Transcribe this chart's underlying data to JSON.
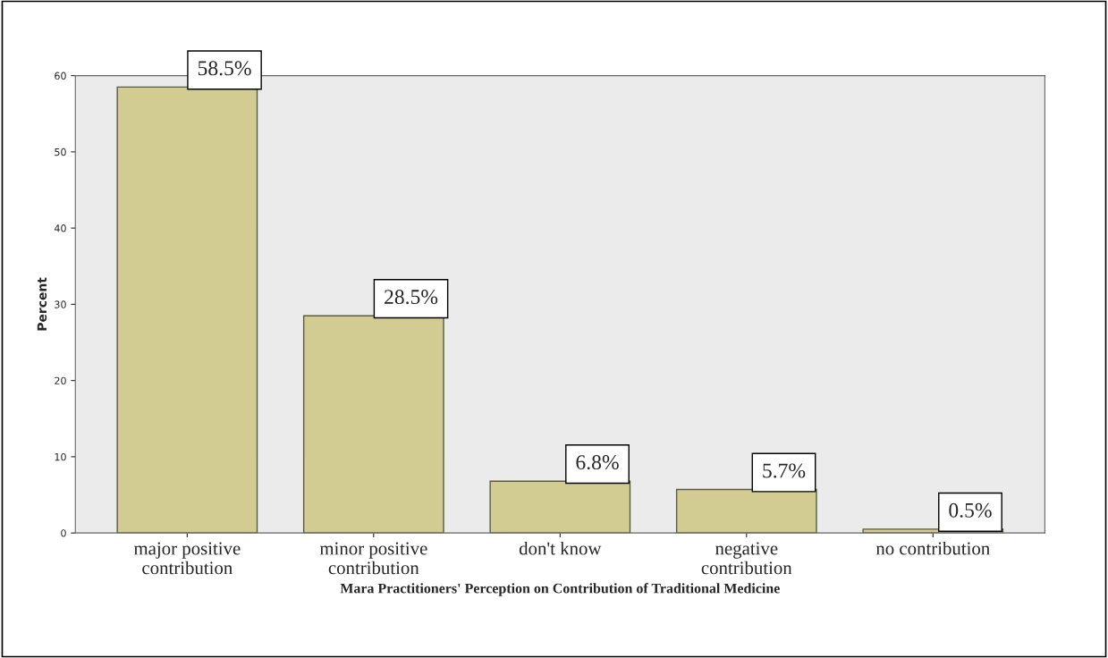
{
  "chart_data": {
    "type": "bar",
    "xlabel": "Mara Practitioners' Perception on Contribution of Traditional Medicine",
    "ylabel": "Percent",
    "categories": [
      "major positive\ncontribution",
      "minor positive\ncontribution",
      "don't know",
      "negative\ncontribution",
      "no contribution"
    ],
    "values": [
      58.5,
      28.5,
      6.8,
      5.7,
      0.5
    ],
    "value_labels": [
      "58.5%",
      "28.5%",
      "6.8%",
      "5.7%",
      "0.5%"
    ],
    "color": "#d3cc92",
    "ylim": [
      0,
      60
    ],
    "yticks": [
      0,
      10,
      20,
      30,
      40,
      50,
      60
    ],
    "grid": false,
    "legend": false
  }
}
